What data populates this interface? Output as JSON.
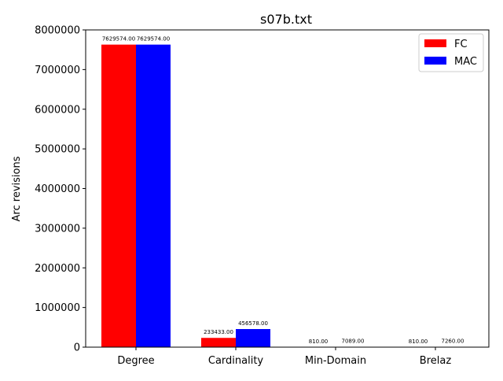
{
  "chart_data": {
    "type": "bar",
    "title": "s07b.txt",
    "xlabel": "",
    "ylabel": "Arc revisions",
    "categories": [
      "Degree",
      "Cardinality",
      "Min-Domain",
      "Brelaz"
    ],
    "series": [
      {
        "name": "FC",
        "color": "#ff0000",
        "values": [
          7629574,
          233433,
          810,
          810
        ],
        "value_labels": [
          "7629574.00",
          "233433.00",
          "810.00",
          "810.00"
        ]
      },
      {
        "name": "MAC",
        "color": "#0000ff",
        "values": [
          7629574,
          456578,
          7089,
          7260
        ],
        "value_labels": [
          "7629574.00",
          "456578.00",
          "7089.00",
          "7260.00"
        ]
      }
    ],
    "ylim": [
      0,
      8000000
    ],
    "yticks": [
      0,
      1000000,
      2000000,
      3000000,
      4000000,
      5000000,
      6000000,
      7000000,
      8000000
    ],
    "ytick_labels": [
      "0",
      "1000000",
      "2000000",
      "3000000",
      "4000000",
      "5000000",
      "6000000",
      "7000000",
      "8000000"
    ],
    "grid": false,
    "legend_position": "top-right"
  }
}
